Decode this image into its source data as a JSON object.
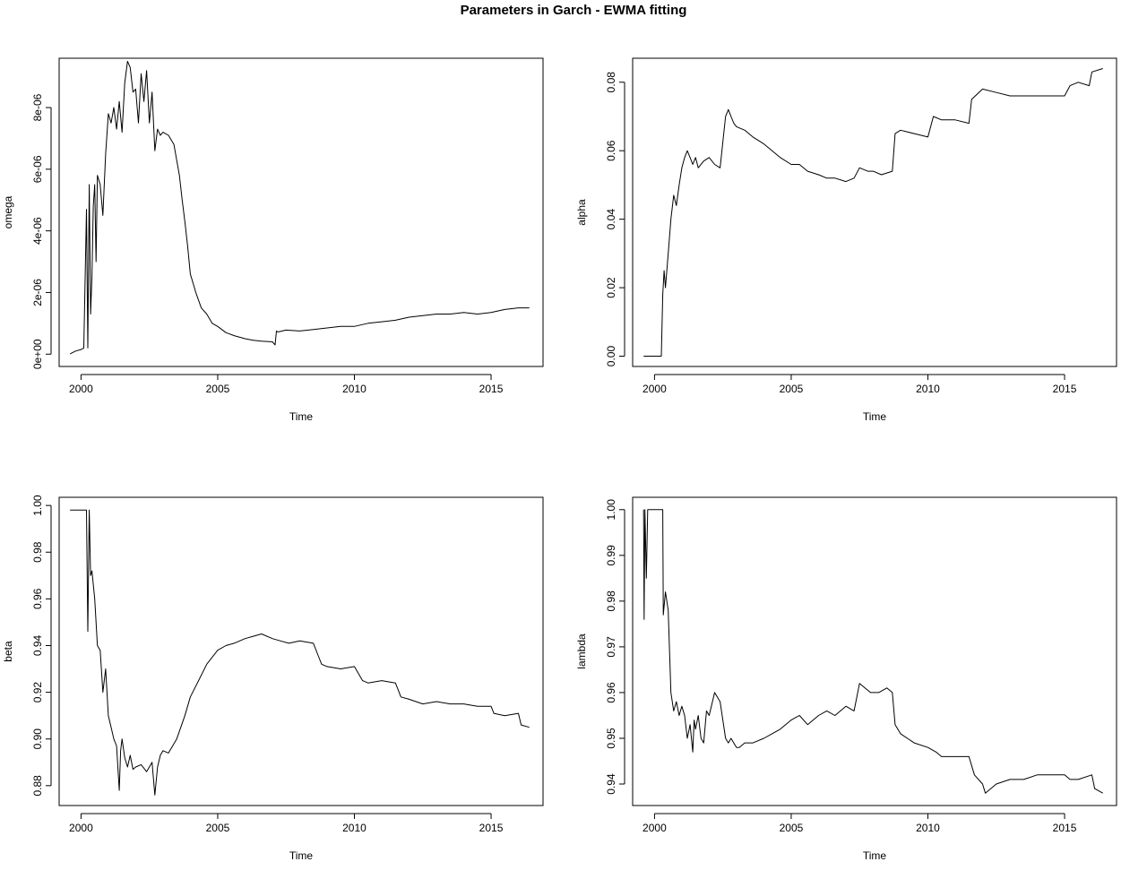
{
  "title": "Parameters in Garch - EWMA fitting",
  "chart_data": [
    {
      "type": "line",
      "xlabel": "Time",
      "ylabel": "omega",
      "xlim": [
        1999.2,
        2016.9
      ],
      "ylim": [
        -4e-07,
        9.6e-06
      ],
      "xticks": [
        2000,
        2005,
        2010,
        2015
      ],
      "yticks": [
        0,
        2e-06,
        4e-06,
        6e-06,
        8e-06
      ],
      "yticklabels": [
        "0e+00",
        "2e-06",
        "4e-06",
        "6e-06",
        "8e-06"
      ],
      "x": [
        1999.6,
        1999.8,
        2000.0,
        2000.1,
        2000.2,
        2000.25,
        2000.3,
        2000.35,
        2000.4,
        2000.45,
        2000.5,
        2000.55,
        2000.6,
        2000.7,
        2000.8,
        2000.9,
        2001.0,
        2001.1,
        2001.2,
        2001.3,
        2001.4,
        2001.5,
        2001.6,
        2001.7,
        2001.8,
        2001.9,
        2002.0,
        2002.1,
        2002.2,
        2002.3,
        2002.4,
        2002.5,
        2002.6,
        2002.7,
        2002.8,
        2002.9,
        2003.0,
        2003.2,
        2003.4,
        2003.6,
        2003.7,
        2003.8,
        2003.9,
        2004.0,
        2004.1,
        2004.2,
        2004.4,
        2004.6,
        2004.8,
        2005.0,
        2005.3,
        2005.6,
        2006.0,
        2006.3,
        2006.6,
        2007.0,
        2007.1,
        2007.15,
        2007.2,
        2007.5,
        2008.0,
        2008.5,
        2009.0,
        2009.5,
        2010.0,
        2010.5,
        2011.0,
        2011.5,
        2012.0,
        2012.5,
        2013.0,
        2013.5,
        2014.0,
        2014.5,
        2015.0,
        2015.5,
        2016.0,
        2016.4
      ],
      "y": [
        1e-08,
        1e-07,
        1.5e-07,
        2e-07,
        4.7e-06,
        2e-07,
        5.5e-06,
        1.3e-06,
        2.5e-06,
        4.8e-06,
        5.5e-06,
        3e-06,
        5.8e-06,
        5.5e-06,
        4.5e-06,
        6.5e-06,
        7.8e-06,
        7.5e-06,
        8e-06,
        7.3e-06,
        8.2e-06,
        7.2e-06,
        8.8e-06,
        9.5e-06,
        9.3e-06,
        8.5e-06,
        8.6e-06,
        7.5e-06,
        9.1e-06,
        8.2e-06,
        9.2e-06,
        7.5e-06,
        8.5e-06,
        6.6e-06,
        7.3e-06,
        7.1e-06,
        7.2e-06,
        7.1e-06,
        6.8e-06,
        5.8e-06,
        5e-06,
        4.3e-06,
        3.5e-06,
        2.6e-06,
        2.3e-06,
        2e-06,
        1.5e-06,
        1.3e-06,
        1e-06,
        9e-07,
        7e-07,
        6e-07,
        5e-07,
        4.5e-07,
        4.2e-07,
        4e-07,
        3e-07,
        7.5e-07,
        7.2e-07,
        7.8e-07,
        7.5e-07,
        8e-07,
        8.5e-07,
        9e-07,
        9e-07,
        1e-06,
        1.05e-06,
        1.1e-06,
        1.2e-06,
        1.25e-06,
        1.3e-06,
        1.3e-06,
        1.35e-06,
        1.3e-06,
        1.35e-06,
        1.45e-06,
        1.5e-06,
        1.5e-06
      ]
    },
    {
      "type": "line",
      "xlabel": "Time",
      "ylabel": "alpha",
      "xlim": [
        1999.2,
        2016.9
      ],
      "ylim": [
        -0.003,
        0.087
      ],
      "xticks": [
        2000,
        2005,
        2010,
        2015
      ],
      "yticks": [
        0,
        0.02,
        0.04,
        0.06,
        0.08
      ],
      "yticklabels": [
        "0.00",
        "0.02",
        "0.04",
        "0.06",
        "0.08"
      ],
      "x": [
        1999.6,
        1999.8,
        2000.0,
        2000.1,
        2000.25,
        2000.3,
        2000.35,
        2000.4,
        2000.5,
        2000.6,
        2000.7,
        2000.8,
        2000.9,
        2001.0,
        2001.1,
        2001.2,
        2001.3,
        2001.4,
        2001.5,
        2001.6,
        2001.8,
        2002.0,
        2002.2,
        2002.4,
        2002.6,
        2002.7,
        2002.8,
        2002.9,
        2003.0,
        2003.3,
        2003.6,
        2004.0,
        2004.3,
        2004.6,
        2005.0,
        2005.3,
        2005.6,
        2006.0,
        2006.3,
        2006.6,
        2007.0,
        2007.3,
        2007.5,
        2007.8,
        2008.0,
        2008.3,
        2008.7,
        2008.8,
        2009.0,
        2009.5,
        2010.0,
        2010.2,
        2010.5,
        2011.0,
        2011.5,
        2011.6,
        2012.0,
        2012.5,
        2013.0,
        2013.5,
        2014.0,
        2014.5,
        2015.0,
        2015.2,
        2015.5,
        2015.9,
        2016.0,
        2016.4
      ],
      "y": [
        0.0,
        0.0,
        0.0,
        0.0,
        0.0,
        0.018,
        0.025,
        0.02,
        0.03,
        0.04,
        0.047,
        0.044,
        0.05,
        0.055,
        0.058,
        0.06,
        0.058,
        0.056,
        0.058,
        0.055,
        0.057,
        0.058,
        0.056,
        0.055,
        0.07,
        0.072,
        0.07,
        0.068,
        0.067,
        0.066,
        0.064,
        0.062,
        0.06,
        0.058,
        0.056,
        0.056,
        0.054,
        0.053,
        0.052,
        0.052,
        0.051,
        0.052,
        0.055,
        0.054,
        0.054,
        0.053,
        0.054,
        0.065,
        0.066,
        0.065,
        0.064,
        0.07,
        0.069,
        0.069,
        0.068,
        0.075,
        0.078,
        0.077,
        0.076,
        0.076,
        0.076,
        0.076,
        0.076,
        0.079,
        0.08,
        0.079,
        0.083,
        0.084
      ]
    },
    {
      "type": "line",
      "xlabel": "Time",
      "ylabel": "beta",
      "xlim": [
        1999.2,
        2016.9
      ],
      "ylim": [
        0.8715,
        1.0035
      ],
      "xticks": [
        2000,
        2005,
        2010,
        2015
      ],
      "yticks": [
        0.88,
        0.9,
        0.92,
        0.94,
        0.96,
        0.98,
        1.0
      ],
      "yticklabels": [
        "0.88",
        "0.90",
        "0.92",
        "0.94",
        "0.96",
        "0.98",
        "1.00"
      ],
      "x": [
        1999.6,
        1999.8,
        2000.0,
        2000.1,
        2000.2,
        2000.25,
        2000.3,
        2000.35,
        2000.4,
        2000.5,
        2000.6,
        2000.7,
        2000.8,
        2000.9,
        2001.0,
        2001.1,
        2001.2,
        2001.3,
        2001.4,
        2001.45,
        2001.5,
        2001.6,
        2001.7,
        2001.8,
        2001.9,
        2002.0,
        2002.2,
        2002.4,
        2002.6,
        2002.7,
        2002.8,
        2002.9,
        2003.0,
        2003.2,
        2003.5,
        2003.8,
        2004.0,
        2004.3,
        2004.6,
        2005.0,
        2005.3,
        2005.6,
        2006.0,
        2006.3,
        2006.6,
        2007.0,
        2007.3,
        2007.6,
        2008.0,
        2008.5,
        2008.7,
        2008.8,
        2009.0,
        2009.5,
        2010.0,
        2010.3,
        2010.5,
        2011.0,
        2011.5,
        2011.7,
        2012.0,
        2012.5,
        2013.0,
        2013.5,
        2014.0,
        2014.5,
        2015.0,
        2015.1,
        2015.5,
        2016.0,
        2016.1,
        2016.4
      ],
      "y": [
        0.998,
        0.998,
        0.998,
        0.998,
        0.998,
        0.946,
        0.998,
        0.97,
        0.972,
        0.96,
        0.94,
        0.938,
        0.92,
        0.93,
        0.91,
        0.905,
        0.9,
        0.897,
        0.878,
        0.895,
        0.9,
        0.892,
        0.888,
        0.893,
        0.887,
        0.888,
        0.889,
        0.886,
        0.89,
        0.876,
        0.888,
        0.893,
        0.895,
        0.894,
        0.9,
        0.91,
        0.918,
        0.925,
        0.932,
        0.938,
        0.94,
        0.941,
        0.943,
        0.944,
        0.945,
        0.943,
        0.942,
        0.941,
        0.942,
        0.941,
        0.935,
        0.932,
        0.931,
        0.93,
        0.931,
        0.925,
        0.924,
        0.925,
        0.924,
        0.918,
        0.917,
        0.915,
        0.916,
        0.915,
        0.915,
        0.914,
        0.914,
        0.911,
        0.91,
        0.911,
        0.906,
        0.905
      ]
    },
    {
      "type": "line",
      "xlabel": "Time",
      "ylabel": "lambda",
      "xlim": [
        1999.2,
        2016.9
      ],
      "ylim": [
        0.9353,
        1.0027
      ],
      "xticks": [
        2000,
        2005,
        2010,
        2015
      ],
      "yticks": [
        0.94,
        0.95,
        0.96,
        0.97,
        0.98,
        0.99,
        1.0
      ],
      "yticklabels": [
        "0.94",
        "0.95",
        "0.96",
        "0.97",
        "0.98",
        "0.99",
        "1.00"
      ],
      "x": [
        1999.6,
        1999.62,
        1999.65,
        1999.7,
        1999.75,
        1999.8,
        2000.0,
        2000.2,
        2000.3,
        2000.32,
        2000.4,
        2000.5,
        2000.6,
        2000.7,
        2000.8,
        2000.9,
        2001.0,
        2001.1,
        2001.2,
        2001.3,
        2001.4,
        2001.45,
        2001.5,
        2001.6,
        2001.7,
        2001.8,
        2001.9,
        2002.0,
        2002.2,
        2002.4,
        2002.6,
        2002.7,
        2002.8,
        2003.0,
        2003.1,
        2003.3,
        2003.6,
        2004.0,
        2004.3,
        2004.6,
        2005.0,
        2005.3,
        2005.6,
        2006.0,
        2006.3,
        2006.6,
        2007.0,
        2007.3,
        2007.5,
        2007.9,
        2008.2,
        2008.5,
        2008.7,
        2008.8,
        2009.0,
        2009.5,
        2010.0,
        2010.3,
        2010.5,
        2011.0,
        2011.5,
        2011.7,
        2012.0,
        2012.1,
        2012.5,
        2013.0,
        2013.5,
        2014.0,
        2014.5,
        2015.0,
        2015.2,
        2015.5,
        2016.0,
        2016.1,
        2016.4
      ],
      "y": [
        1.0,
        0.976,
        1.0,
        0.985,
        1.0,
        1.0,
        1.0,
        1.0,
        1.0,
        0.977,
        0.982,
        0.978,
        0.96,
        0.956,
        0.958,
        0.955,
        0.957,
        0.955,
        0.95,
        0.953,
        0.947,
        0.954,
        0.952,
        0.955,
        0.95,
        0.949,
        0.956,
        0.955,
        0.96,
        0.958,
        0.95,
        0.949,
        0.95,
        0.948,
        0.948,
        0.949,
        0.949,
        0.95,
        0.951,
        0.952,
        0.954,
        0.955,
        0.953,
        0.955,
        0.956,
        0.955,
        0.957,
        0.956,
        0.962,
        0.96,
        0.96,
        0.961,
        0.96,
        0.953,
        0.951,
        0.949,
        0.948,
        0.947,
        0.946,
        0.946,
        0.946,
        0.942,
        0.94,
        0.938,
        0.94,
        0.941,
        0.941,
        0.942,
        0.942,
        0.942,
        0.941,
        0.941,
        0.942,
        0.939,
        0.938
      ]
    }
  ]
}
